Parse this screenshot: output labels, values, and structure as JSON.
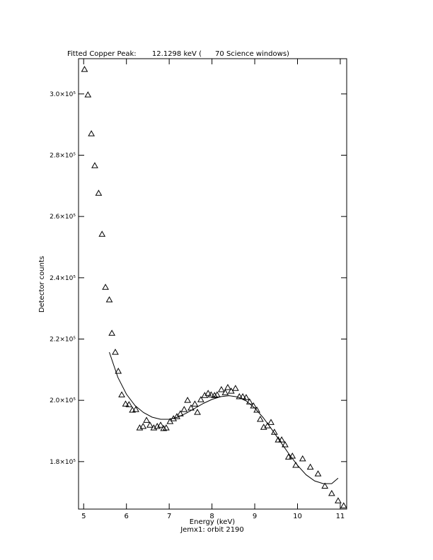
{
  "chart_data": {
    "type": "scatter",
    "title": "Fitted Copper Peak:       12.1298 keV (      70 Science windows)",
    "subtitle": "Jemx1: orbit 2190",
    "x_label": "Energy (keV)",
    "y_label": "Detector counts",
    "xlim": [
      4.88,
      11.15
    ],
    "ylim": [
      164500,
      311500
    ],
    "xticks": [
      5,
      6,
      7,
      8,
      9,
      10,
      11
    ],
    "yticks": [
      {
        "value": 180000,
        "label": "1.8×10⁵"
      },
      {
        "value": 200000,
        "label": "2.0×10⁵"
      },
      {
        "value": 220000,
        "label": "2.2×10⁵"
      },
      {
        "value": 240000,
        "label": "2.4×10⁵"
      },
      {
        "value": 260000,
        "label": "2.6×10⁵"
      },
      {
        "value": 280000,
        "label": "2.8×10⁵"
      },
      {
        "value": 300000,
        "label": "3.0×10⁵"
      }
    ],
    "color": "#000000",
    "series": [
      {
        "x": [
          5.02,
          5.1,
          5.18,
          5.26,
          5.35,
          5.43,
          5.51,
          5.6,
          5.66,
          5.74,
          5.81,
          5.89,
          5.98,
          6.06,
          6.14,
          6.22,
          6.31,
          6.39,
          6.47,
          6.55,
          6.64,
          6.72,
          6.8,
          6.87,
          6.93,
          7.02,
          7.1,
          7.18,
          7.26,
          7.35,
          7.43,
          7.51,
          7.6,
          7.66,
          7.74,
          7.83,
          7.91,
          7.98,
          8.06,
          8.12,
          8.22,
          8.31,
          8.37,
          8.45,
          8.55,
          8.64,
          8.72,
          8.8,
          8.88,
          8.97,
          9.05,
          9.13,
          9.21,
          9.3,
          9.38,
          9.46,
          9.55,
          9.63,
          9.71,
          9.79,
          9.88,
          9.96,
          10.12,
          10.3,
          10.48,
          10.64,
          10.8,
          10.95,
          11.08
        ],
        "values": [
          308000,
          299700,
          287000,
          276600,
          267600,
          254200,
          236900,
          232800,
          221900,
          215700,
          209500,
          201800,
          198800,
          198600,
          196800,
          197000,
          191000,
          191500,
          193500,
          191900,
          191000,
          191500,
          191900,
          190800,
          191000,
          193100,
          194000,
          194700,
          195600,
          197000,
          200000,
          197500,
          198800,
          196100,
          200200,
          201600,
          202300,
          201800,
          201600,
          201800,
          203500,
          202500,
          204200,
          203000,
          203900,
          201200,
          201200,
          200900,
          199500,
          198200,
          196800,
          193800,
          191200,
          191700,
          192800,
          189600,
          187100,
          187100,
          185500,
          181500,
          181800,
          178800,
          180900,
          178200,
          176000,
          172000,
          169600,
          167200,
          165600
        ]
      },
      {
        "type": "line",
        "x": [
          5.6,
          5.8,
          6.0,
          6.2,
          6.4,
          6.6,
          6.8,
          7.0,
          7.2,
          7.4,
          7.6,
          7.8,
          8.0,
          8.2,
          8.4,
          8.6,
          8.8,
          9.0,
          9.2,
          9.4,
          9.6,
          9.8,
          10.0,
          10.2,
          10.4,
          10.6,
          10.8,
          10.95
        ],
        "values": [
          215700,
          207500,
          202000,
          198300,
          196000,
          194500,
          193800,
          193800,
          194500,
          195800,
          197400,
          199000,
          200300,
          201200,
          201500,
          201100,
          199800,
          197500,
          194300,
          190500,
          186500,
          182500,
          178800,
          175700,
          173700,
          172800,
          172800,
          174600
        ]
      }
    ]
  }
}
